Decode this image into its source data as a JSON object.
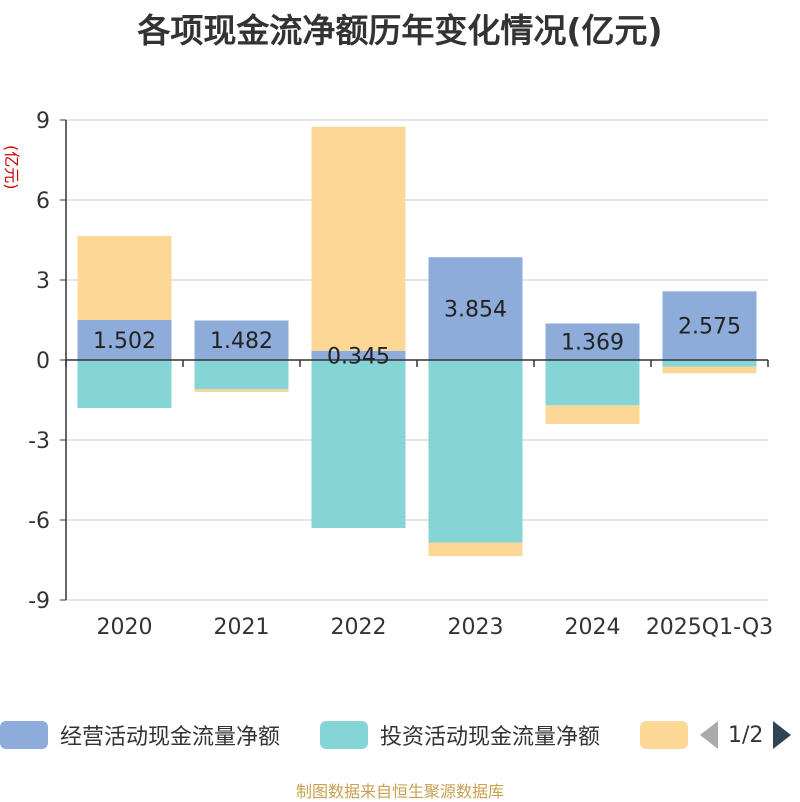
{
  "title": "各项现金流净额历年变化情况(亿元)",
  "y_unit_label": "(亿元)",
  "legend": {
    "items": [
      {
        "label": "经营活动现金流量净额",
        "color": "#8eacd9"
      },
      {
        "label": "投资活动现金流量净额",
        "color": "#85d4d6"
      },
      {
        "label": "",
        "color": "#fdd796"
      }
    ],
    "page_indicator": "1/2"
  },
  "source": "制图数据来自恒生聚源数据库",
  "colors": {
    "operating": "#8eacd9",
    "investing": "#85d4d6",
    "financing": "#fdd796"
  },
  "chart_data": {
    "type": "bar",
    "stacked": true,
    "title": "各项现金流净额历年变化情况(亿元)",
    "ylabel": "(亿元)",
    "categories": [
      "2020",
      "2021",
      "2022",
      "2023",
      "2024",
      "2025Q1-Q3"
    ],
    "ylim": [
      -9,
      9
    ],
    "yticks": [
      9,
      6,
      3,
      0,
      -3,
      -6,
      -9
    ],
    "grid": true,
    "legend_position": "bottom",
    "series": [
      {
        "name": "经营活动现金流量净额",
        "values": [
          1.502,
          1.482,
          0.345,
          3.854,
          1.369,
          2.575
        ],
        "labels": [
          "1.502",
          "1.482",
          "0.345",
          "3.854",
          "1.369",
          "2.575"
        ]
      },
      {
        "name": "投资活动现金流量净额",
        "values": [
          -1.8,
          -1.1,
          -6.3,
          -6.85,
          -1.7,
          -0.25
        ]
      },
      {
        "name": "",
        "values": [
          3.15,
          -0.1,
          8.4,
          -0.5,
          -0.7,
          -0.25
        ]
      }
    ]
  }
}
